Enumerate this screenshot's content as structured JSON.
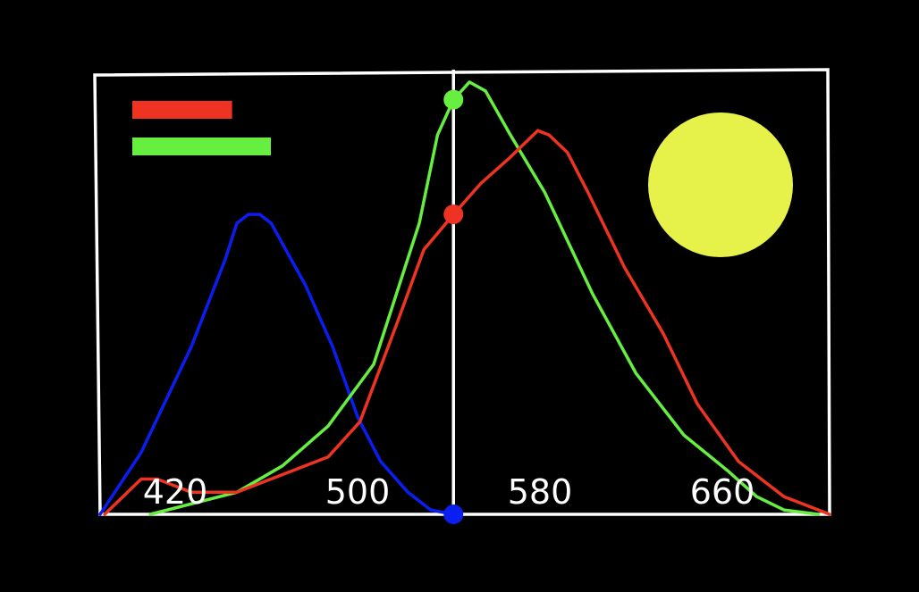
{
  "chart_data": {
    "type": "line",
    "xlim": [
      380,
      700
    ],
    "ylim": [
      0,
      1
    ],
    "x_ticks": [
      "420",
      "500",
      "580",
      "660"
    ],
    "x_tick_values": [
      420,
      500,
      580,
      660
    ],
    "grid": false,
    "cursor": {
      "x": 535,
      "values": {
        "red": 0.68,
        "green": 0.94,
        "blue": 0.0
      }
    },
    "legend": {
      "placement": "top-left",
      "swatches": [
        {
          "series": "red",
          "fraction": 0.72
        },
        {
          "series": "green",
          "fraction": 1.0
        }
      ]
    },
    "indicator": {
      "shape": "circle",
      "color": "#e6f24a",
      "placement": "top-right"
    },
    "series": [
      {
        "key": "blue",
        "color": "#0a1ef2",
        "points": [
          [
            380,
            0
          ],
          [
            398,
            0.14
          ],
          [
            420,
            0.38
          ],
          [
            435,
            0.58
          ],
          [
            440,
            0.66
          ],
          [
            445,
            0.68
          ],
          [
            450,
            0.68
          ],
          [
            455,
            0.66
          ],
          [
            470,
            0.52
          ],
          [
            482,
            0.38
          ],
          [
            493,
            0.22
          ],
          [
            503,
            0.12
          ],
          [
            515,
            0.05
          ],
          [
            525,
            0.01
          ],
          [
            535,
            0
          ]
        ]
      },
      {
        "key": "green",
        "color": "#66ee40",
        "points": [
          [
            402,
            0
          ],
          [
            440,
            0.05
          ],
          [
            460,
            0.11
          ],
          [
            480,
            0.2
          ],
          [
            500,
            0.34
          ],
          [
            520,
            0.66
          ],
          [
            528,
            0.86
          ],
          [
            535,
            0.94
          ],
          [
            542,
            0.98
          ],
          [
            549,
            0.96
          ],
          [
            560,
            0.86
          ],
          [
            575,
            0.73
          ],
          [
            596,
            0.5
          ],
          [
            615,
            0.32
          ],
          [
            636,
            0.18
          ],
          [
            655,
            0.1
          ],
          [
            668,
            0.04
          ],
          [
            680,
            0.01
          ],
          [
            695,
            0
          ]
        ]
      },
      {
        "key": "red",
        "color": "#ee3322",
        "points": [
          [
            382,
            0
          ],
          [
            398,
            0.08
          ],
          [
            405,
            0.08
          ],
          [
            420,
            0.05
          ],
          [
            440,
            0.05
          ],
          [
            460,
            0.09
          ],
          [
            480,
            0.13
          ],
          [
            494,
            0.21
          ],
          [
            510,
            0.43
          ],
          [
            522,
            0.6
          ],
          [
            535,
            0.68
          ],
          [
            547,
            0.75
          ],
          [
            560,
            0.81
          ],
          [
            572,
            0.87
          ],
          [
            577,
            0.86
          ],
          [
            585,
            0.82
          ],
          [
            594,
            0.73
          ],
          [
            610,
            0.56
          ],
          [
            627,
            0.41
          ],
          [
            642,
            0.25
          ],
          [
            660,
            0.12
          ],
          [
            680,
            0.04
          ],
          [
            700,
            0
          ]
        ]
      }
    ]
  }
}
